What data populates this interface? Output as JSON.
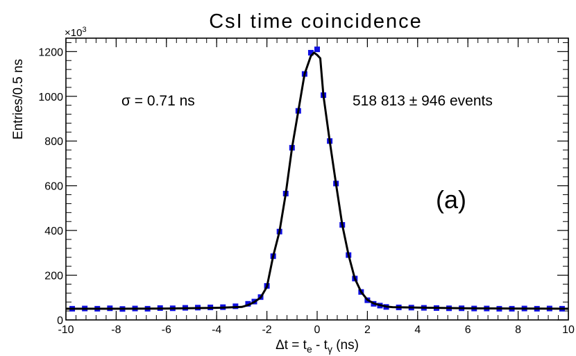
{
  "chart_data": {
    "type": "scatter",
    "title": "CsI time coincidence",
    "xlabel": "Δt = t_e - t_γ (ns)",
    "xlabel_parts": {
      "lhs": "Δt = t",
      "e": "e",
      "mid": " - t",
      "gamma": "γ",
      "unit": " (ns)"
    },
    "ylabel": "Entries/0.5 ns",
    "y_multiplier": "×10",
    "y_multiplier_exp": "3",
    "xlim": [
      -10,
      10
    ],
    "ylim": [
      0,
      1260
    ],
    "xticks": [
      -10,
      -8,
      -6,
      -4,
      -2,
      0,
      2,
      4,
      6,
      8,
      10
    ],
    "xtick_labels": [
      "-10",
      "-8",
      "-6",
      "-4",
      "-2",
      "0",
      "2",
      "4",
      "6",
      "8",
      "10"
    ],
    "yticks": [
      0,
      200,
      400,
      600,
      800,
      1000,
      1200
    ],
    "ytick_labels": [
      "0",
      "200",
      "400",
      "600",
      "800",
      "1000",
      "1200"
    ],
    "annotations": {
      "sigma": "σ  = 0.71 ns",
      "events": "518 813 ± 946 events",
      "panel": "(a)"
    },
    "series": [
      {
        "name": "data",
        "color": "#1010e0",
        "x": [
          -9.75,
          -9.25,
          -8.75,
          -8.25,
          -7.75,
          -7.25,
          -6.75,
          -6.25,
          -5.75,
          -5.25,
          -4.75,
          -4.25,
          -3.75,
          -3.25,
          -2.75,
          -2.5,
          -2.25,
          -2.0,
          -1.75,
          -1.5,
          -1.25,
          -1.0,
          -0.75,
          -0.5,
          -0.25,
          0.0,
          0.25,
          0.5,
          0.75,
          1.0,
          1.25,
          1.5,
          1.75,
          2.0,
          2.25,
          2.5,
          2.75,
          3.25,
          3.75,
          4.25,
          4.75,
          5.25,
          5.75,
          6.25,
          6.75,
          7.25,
          7.75,
          8.25,
          8.75,
          9.25,
          9.75
        ],
        "y": [
          50,
          51,
          50,
          52,
          49,
          51,
          50,
          53,
          52,
          54,
          55,
          56,
          57,
          61,
          72,
          82,
          102,
          152,
          285,
          395,
          565,
          770,
          935,
          1100,
          1195,
          1210,
          1005,
          800,
          610,
          425,
          290,
          185,
          125,
          88,
          72,
          64,
          58,
          56,
          55,
          54,
          53,
          52,
          52,
          51,
          51,
          50,
          50,
          51,
          50,
          51,
          50
        ]
      },
      {
        "name": "fit",
        "color": "#000000",
        "x": [
          -10,
          -8,
          -6,
          -4,
          -3,
          -2.75,
          -2.5,
          -2.25,
          -2.0,
          -1.75,
          -1.5,
          -1.25,
          -1.0,
          -0.75,
          -0.5,
          -0.25,
          -0.125,
          0.0,
          0.125,
          0.25,
          0.5,
          0.75,
          1.0,
          1.25,
          1.5,
          1.75,
          2.0,
          2.25,
          2.5,
          2.75,
          3.0,
          4,
          6,
          8,
          10
        ],
        "y": [
          50,
          50,
          51,
          54,
          58,
          66,
          80,
          100,
          148,
          285,
          395,
          565,
          770,
          935,
          1100,
          1180,
          1195,
          1185,
          1170,
          1005,
          800,
          610,
          425,
          290,
          185,
          125,
          90,
          74,
          66,
          60,
          57,
          55,
          52,
          51,
          50
        ]
      }
    ]
  }
}
